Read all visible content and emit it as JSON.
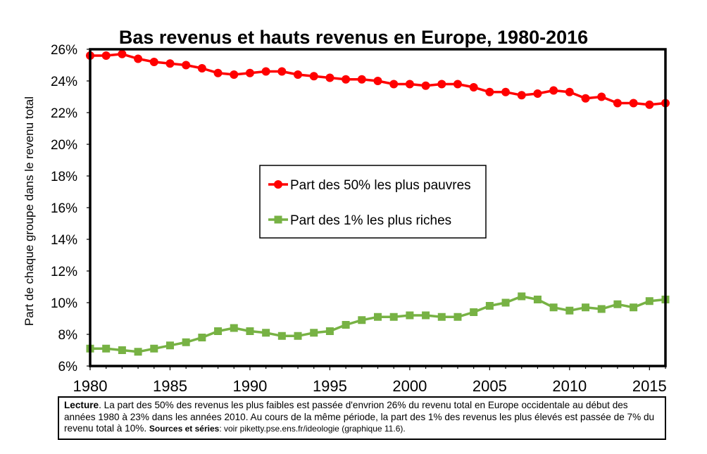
{
  "chart_data": {
    "type": "line",
    "title": "Bas revenus et hauts revenus en Europe, 1980-2016",
    "xlabel": "",
    "ylabel": "Part de chaque groupe dans le revenu total",
    "xlim": [
      1980,
      2016
    ],
    "ylim": [
      0.06,
      0.26
    ],
    "x_ticks": [
      1980,
      1985,
      1990,
      1995,
      2000,
      2005,
      2010,
      2015
    ],
    "y_ticks": [
      "6%",
      "8%",
      "10%",
      "12%",
      "14%",
      "16%",
      "18%",
      "20%",
      "22%",
      "24%",
      "26%"
    ],
    "grid": false,
    "legend_position": "center",
    "x": [
      1980,
      1981,
      1982,
      1983,
      1984,
      1985,
      1986,
      1987,
      1988,
      1989,
      1990,
      1991,
      1992,
      1993,
      1994,
      1995,
      1996,
      1997,
      1998,
      1999,
      2000,
      2001,
      2002,
      2003,
      2004,
      2005,
      2006,
      2007,
      2008,
      2009,
      2010,
      2011,
      2012,
      2013,
      2014,
      2015,
      2016
    ],
    "series": [
      {
        "name": "Part des 50% les plus pauvres",
        "color": "#ff0000",
        "marker": "circle",
        "values": [
          0.256,
          0.256,
          0.257,
          0.254,
          0.252,
          0.251,
          0.25,
          0.248,
          0.245,
          0.244,
          0.245,
          0.246,
          0.246,
          0.244,
          0.243,
          0.242,
          0.241,
          0.241,
          0.24,
          0.238,
          0.238,
          0.237,
          0.238,
          0.238,
          0.236,
          0.233,
          0.233,
          0.231,
          0.232,
          0.234,
          0.233,
          0.229,
          0.23,
          0.226,
          0.226,
          0.225,
          0.226
        ]
      },
      {
        "name": "Part des 1% les plus riches",
        "color": "#77b244",
        "marker": "square",
        "values": [
          0.071,
          0.071,
          0.07,
          0.069,
          0.071,
          0.073,
          0.075,
          0.078,
          0.082,
          0.084,
          0.082,
          0.081,
          0.079,
          0.079,
          0.081,
          0.082,
          0.086,
          0.089,
          0.091,
          0.091,
          0.092,
          0.092,
          0.091,
          0.091,
          0.094,
          0.098,
          0.1,
          0.104,
          0.102,
          0.097,
          0.095,
          0.097,
          0.096,
          0.099,
          0.097,
          0.101,
          0.102
        ]
      }
    ]
  },
  "note": {
    "lecture_label": "Lecture",
    "lecture_text": ". La part des 50% des revenus les plus faibles est passée d'envrion 26% du revenu total en Europe occidentale au début des années 1980 à 23% dans les années 2010. Au cours de la même période, la part des 1% des revenus les plus élevés est passée de 7% du revenu total à 10%. ",
    "sources_label": "Sources et séries",
    "sources_text": ": voir piketty.pse.ens.fr/ideologie (graphique 11.6)."
  }
}
